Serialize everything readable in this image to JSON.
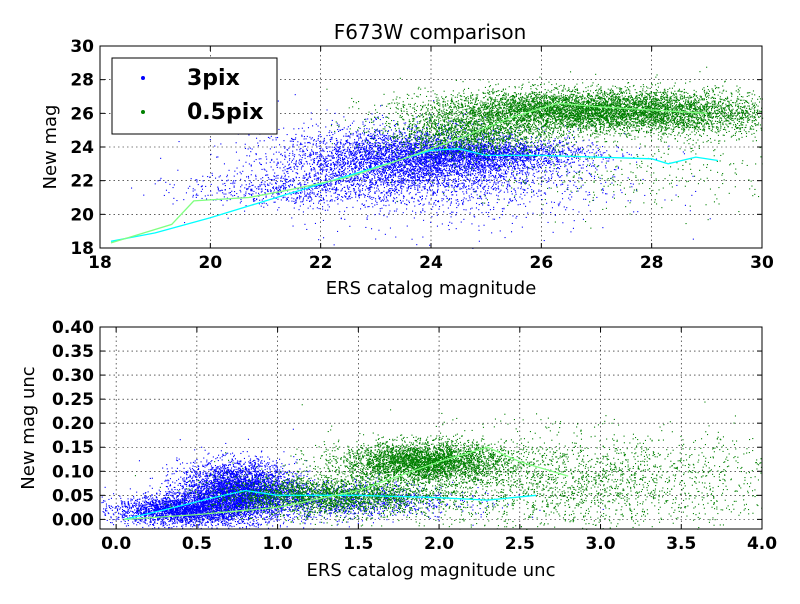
{
  "chart_data": [
    {
      "type": "scatter",
      "title": "F673W comparison",
      "xlabel": "ERS catalog magnitude",
      "ylabel": "New mag",
      "xlim": [
        18,
        30
      ],
      "ylim": [
        18,
        30
      ],
      "xticks": [
        "18",
        "20",
        "22",
        "24",
        "26",
        "28",
        "30"
      ],
      "yticks": [
        "18",
        "20",
        "22",
        "24",
        "26",
        "28",
        "30"
      ],
      "grid": true,
      "legend_position": "top-left",
      "series": [
        {
          "name": "3pix",
          "color": "#0000ff",
          "trend_color": "#00ffff",
          "trend": [
            [
              18.2,
              18.4
            ],
            [
              19,
              18.9
            ],
            [
              20,
              19.8
            ],
            [
              21,
              20.8
            ],
            [
              22,
              21.8
            ],
            [
              23,
              22.8
            ],
            [
              24,
              23.8
            ],
            [
              24.5,
              23.9
            ],
            [
              25,
              23.5
            ],
            [
              26,
              23.5
            ],
            [
              27,
              23.4
            ],
            [
              28,
              23.3
            ],
            [
              28.3,
              23.0
            ],
            [
              28.8,
              23.4
            ],
            [
              29.2,
              23.2
            ]
          ],
          "clouds": [
            {
              "x_range": [
                18,
                30
              ],
              "n": 0
            },
            {
              "x_center": 23.6,
              "x_spread": 1.2,
              "y_center": 23.2,
              "y_spread": 1.0,
              "n": 4500
            },
            {
              "x_center": 25.0,
              "x_spread": 1.0,
              "y_center": 23.6,
              "y_spread": 0.4,
              "n": 1500
            },
            {
              "x_center": 21.5,
              "x_spread": 1.0,
              "y_center": 21.5,
              "y_spread": 0.5,
              "n": 600
            },
            {
              "x_center": 24.5,
              "x_spread": 1.5,
              "y_center": 21.8,
              "y_spread": 1.5,
              "n": 800
            }
          ]
        },
        {
          "name": "0.5pix",
          "color": "#008000",
          "trend_color": "#80ff80",
          "trend": [
            [
              18.2,
              18.3
            ],
            [
              19.3,
              19.4
            ],
            [
              19.7,
              20.8
            ],
            [
              20.7,
              21.0
            ],
            [
              21.5,
              21.5
            ],
            [
              22.5,
              22.2
            ],
            [
              23.5,
              23.3
            ],
            [
              24.5,
              24.5
            ],
            [
              25.5,
              25.8
            ],
            [
              26.3,
              26.6
            ],
            [
              27,
              26.4
            ],
            [
              28,
              26.2
            ],
            [
              29,
              26.0
            ]
          ],
          "clouds": [
            {
              "x_center": 26.5,
              "x_spread": 1.3,
              "y_center": 26.2,
              "y_spread": 0.6,
              "n": 5000
            },
            {
              "x_center": 28.5,
              "x_spread": 1.0,
              "y_center": 26.0,
              "y_spread": 0.7,
              "n": 2000
            },
            {
              "x_center": 24.7,
              "x_spread": 0.8,
              "y_center": 24.8,
              "y_spread": 0.6,
              "n": 1500
            },
            {
              "x_center": 27.5,
              "x_spread": 1.8,
              "y_center": 22.5,
              "y_spread": 1.2,
              "n": 400
            }
          ]
        }
      ]
    },
    {
      "type": "scatter",
      "title": "",
      "xlabel": "ERS catalog magnitude unc",
      "ylabel": "New mag unc",
      "xlim": [
        -0.1,
        4.0
      ],
      "ylim": [
        -0.02,
        0.4
      ],
      "xticks": [
        "0.0",
        "0.5",
        "1.0",
        "1.5",
        "2.0",
        "2.5",
        "3.0",
        "3.5",
        "4.0"
      ],
      "yticks": [
        "0.00",
        "0.05",
        "0.10",
        "0.15",
        "0.20",
        "0.25",
        "0.30",
        "0.35",
        "0.40"
      ],
      "grid": true,
      "series": [
        {
          "name": "3pix",
          "color": "#0000ff",
          "trend_color": "#00ffff",
          "trend": [
            [
              0.05,
              0.0
            ],
            [
              0.3,
              0.02
            ],
            [
              0.6,
              0.045
            ],
            [
              0.8,
              0.06
            ],
            [
              1.0,
              0.05
            ],
            [
              1.5,
              0.05
            ],
            [
              2.0,
              0.045
            ],
            [
              2.3,
              0.04
            ],
            [
              2.6,
              0.05
            ]
          ],
          "clouds": [
            {
              "x_center": 0.75,
              "x_spread": 0.18,
              "y_center": 0.06,
              "y_spread": 0.03,
              "n": 4000
            },
            {
              "x_center": 0.4,
              "x_spread": 0.2,
              "y_center": 0.02,
              "y_spread": 0.015,
              "n": 2500
            },
            {
              "x_center": 1.3,
              "x_spread": 0.4,
              "y_center": 0.04,
              "y_spread": 0.02,
              "n": 1500
            }
          ]
        },
        {
          "name": "0.5pix",
          "color": "#008000",
          "trend_color": "#80ff80",
          "trend": [
            [
              0.05,
              0.0
            ],
            [
              0.5,
              0.01
            ],
            [
              1.0,
              0.025
            ],
            [
              1.5,
              0.06
            ],
            [
              2.0,
              0.12
            ],
            [
              2.3,
              0.15
            ],
            [
              2.5,
              0.12
            ],
            [
              2.8,
              0.09
            ]
          ],
          "clouds": [
            {
              "x_center": 1.9,
              "x_spread": 0.25,
              "y_center": 0.12,
              "y_spread": 0.02,
              "n": 3500
            },
            {
              "x_center": 1.3,
              "x_spread": 0.35,
              "y_center": 0.05,
              "y_spread": 0.02,
              "n": 2500
            },
            {
              "x_center": 2.8,
              "x_spread": 0.7,
              "y_center": 0.08,
              "y_spread": 0.05,
              "n": 2500
            }
          ]
        }
      ]
    }
  ]
}
